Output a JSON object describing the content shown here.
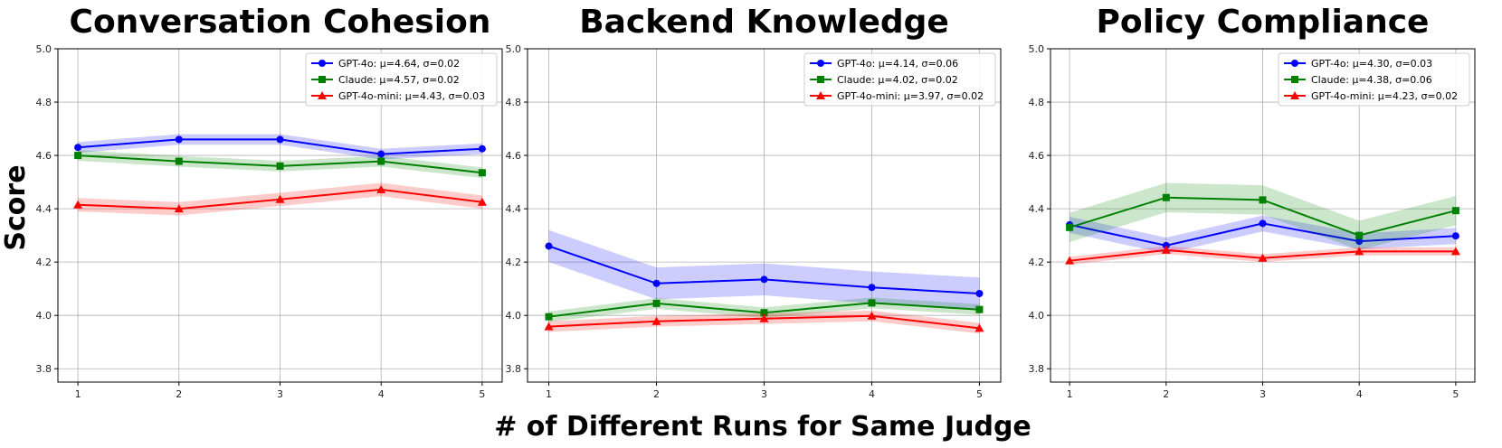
{
  "figure": {
    "ylabel": "Score",
    "xlabel": "# of Different Runs for Same Judge"
  },
  "chart_data": [
    {
      "type": "line",
      "title": "Conversation Cohesion",
      "x": [
        1,
        2,
        3,
        4,
        5
      ],
      "ylim": [
        3.75,
        5.0
      ],
      "yticks": [
        "3.8",
        "4.0",
        "4.2",
        "4.4",
        "4.6",
        "4.8",
        "5.0"
      ],
      "xticks": [
        "1",
        "2",
        "3",
        "4",
        "5"
      ],
      "grid": true,
      "legend_position": "top-right",
      "series": [
        {
          "name": "GPT-4o: μ=4.64, σ=0.02",
          "color": "#0000ff",
          "marker": "circle",
          "values": [
            4.63,
            4.66,
            4.66,
            4.605,
            4.625
          ],
          "band": [
            0.02,
            0.02,
            0.02,
            0.02,
            0.02
          ]
        },
        {
          "name": "Claude: μ=4.57, σ=0.02",
          "color": "#008000",
          "marker": "square",
          "values": [
            4.6,
            4.578,
            4.56,
            4.578,
            4.535
          ],
          "band": [
            0.02,
            0.02,
            0.02,
            0.02,
            0.02
          ]
        },
        {
          "name": "GPT-4o-mini: μ=4.43, σ=0.03",
          "color": "#ff0000",
          "marker": "triangle",
          "values": [
            4.415,
            4.4,
            4.435,
            4.472,
            4.425
          ],
          "band": [
            0.025,
            0.025,
            0.025,
            0.025,
            0.025
          ]
        }
      ]
    },
    {
      "type": "line",
      "title": "Backend Knowledge",
      "x": [
        1,
        2,
        3,
        4,
        5
      ],
      "ylim": [
        3.75,
        5.0
      ],
      "yticks": [
        "3.8",
        "4.0",
        "4.2",
        "4.4",
        "4.6",
        "4.8",
        "5.0"
      ],
      "xticks": [
        "1",
        "2",
        "3",
        "4",
        "5"
      ],
      "grid": true,
      "legend_position": "top-right",
      "series": [
        {
          "name": "GPT-4o: μ=4.14, σ=0.06",
          "color": "#0000ff",
          "marker": "circle",
          "values": [
            4.26,
            4.12,
            4.135,
            4.105,
            4.082
          ],
          "band": [
            0.06,
            0.06,
            0.06,
            0.06,
            0.06
          ]
        },
        {
          "name": "Claude: μ=4.02, σ=0.02",
          "color": "#008000",
          "marker": "square",
          "values": [
            3.995,
            4.045,
            4.01,
            4.047,
            4.022
          ],
          "band": [
            0.02,
            0.02,
            0.02,
            0.02,
            0.02
          ]
        },
        {
          "name": "GPT-4o-mini: μ=3.97, σ=0.02",
          "color": "#ff0000",
          "marker": "triangle",
          "values": [
            3.958,
            3.978,
            3.988,
            3.998,
            3.952
          ],
          "band": [
            0.02,
            0.02,
            0.02,
            0.02,
            0.02
          ]
        }
      ]
    },
    {
      "type": "line",
      "title": "Policy Compliance",
      "x": [
        1,
        2,
        3,
        4,
        5
      ],
      "ylim": [
        3.75,
        5.0
      ],
      "yticks": [
        "3.8",
        "4.0",
        "4.2",
        "4.4",
        "4.6",
        "4.8",
        "5.0"
      ],
      "xticks": [
        "1",
        "2",
        "3",
        "4",
        "5"
      ],
      "grid": true,
      "legend_position": "top-right",
      "series": [
        {
          "name": "GPT-4o: μ=4.30, σ=0.03",
          "color": "#0000ff",
          "marker": "circle",
          "values": [
            4.34,
            4.262,
            4.345,
            4.278,
            4.298
          ],
          "band": [
            0.03,
            0.03,
            0.03,
            0.03,
            0.03
          ]
        },
        {
          "name": "Claude: μ=4.38, σ=0.06",
          "color": "#008000",
          "marker": "square",
          "values": [
            4.33,
            4.442,
            4.433,
            4.3,
            4.393
          ],
          "band": [
            0.055,
            0.055,
            0.055,
            0.055,
            0.055
          ]
        },
        {
          "name": "GPT-4o-mini: μ=4.23, σ=0.02",
          "color": "#ff0000",
          "marker": "triangle",
          "values": [
            4.205,
            4.245,
            4.215,
            4.24,
            4.24
          ],
          "band": [
            0.015,
            0.015,
            0.015,
            0.015,
            0.015
          ]
        }
      ]
    }
  ]
}
